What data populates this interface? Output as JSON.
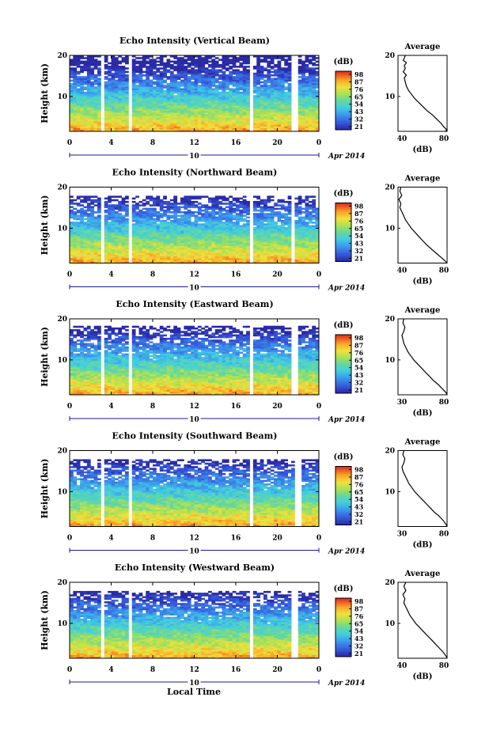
{
  "figure": {
    "date_label": "Apr 2014",
    "date_day": "10",
    "x_axis_label": "Local Time",
    "y_axis_label": "Height (km)",
    "colorbar_unit": "(dB)",
    "colorbar_ticks": [
      "98",
      "87",
      "76",
      "65",
      "54",
      "43",
      "32",
      "21"
    ],
    "average_title": "Average",
    "average_xlabel": "(dB)"
  },
  "chart_data": [
    {
      "type": "heatmap",
      "title": "Echo Intensity (Vertical Beam)",
      "x_ticks": [
        "0",
        "4",
        "8",
        "12",
        "16",
        "20",
        "0"
      ],
      "y_ticks": [
        "20",
        "10"
      ],
      "xlim": [
        0,
        24
      ],
      "ylim": [
        1.5,
        20
      ],
      "zlim": [
        21,
        98
      ],
      "data_gaps_hours": [
        [
          2.9,
          3.2
        ],
        [
          5.6,
          5.9
        ],
        [
          17.5,
          17.8
        ],
        [
          21.3,
          21.9
        ]
      ],
      "top_h_km": 20,
      "average_profile": {
        "xlim": [
          35,
          82
        ],
        "x_ticks": [
          "40",
          "80"
        ],
        "y_ticks": [
          "20",
          "10"
        ],
        "points": [
          [
            42,
            20
          ],
          [
            41,
            19.3
          ],
          [
            40,
            18.8
          ],
          [
            43,
            18.2
          ],
          [
            41,
            17.5
          ],
          [
            42,
            16.8
          ],
          [
            40,
            16
          ],
          [
            43,
            15.2
          ],
          [
            41,
            14.5
          ],
          [
            42,
            13.5
          ],
          [
            43,
            12.5
          ],
          [
            45,
            11.5
          ],
          [
            48,
            10.5
          ],
          [
            51,
            9.5
          ],
          [
            55,
            8.5
          ],
          [
            59,
            7.5
          ],
          [
            63,
            6.5
          ],
          [
            68,
            5.5
          ],
          [
            72,
            4.5
          ],
          [
            76,
            3.5
          ],
          [
            79,
            2.6
          ],
          [
            82,
            1.8
          ],
          [
            80,
            1.5
          ]
        ]
      }
    },
    {
      "type": "heatmap",
      "title": "Echo Intensity (Northward Beam)",
      "x_ticks": [
        "0",
        "4",
        "8",
        "12",
        "16",
        "20",
        "0"
      ],
      "y_ticks": [
        "20",
        "10"
      ],
      "xlim": [
        0,
        24
      ],
      "ylim": [
        1.5,
        20
      ],
      "zlim": [
        21,
        98
      ],
      "data_gaps_hours": [
        [
          2.9,
          3.2
        ],
        [
          5.6,
          5.9
        ],
        [
          17.5,
          17.8
        ],
        [
          21.3,
          21.7
        ]
      ],
      "top_h_km": 18,
      "average_profile": {
        "xlim": [
          30,
          82
        ],
        "x_ticks": [
          "40",
          "80"
        ],
        "y_ticks": [
          "20",
          "10"
        ],
        "points": [
          [
            33,
            20
          ],
          [
            32,
            19
          ],
          [
            34,
            18
          ],
          [
            31,
            17
          ],
          [
            33,
            16
          ],
          [
            32,
            15
          ],
          [
            34,
            14
          ],
          [
            36,
            13
          ],
          [
            38,
            12
          ],
          [
            41,
            11
          ],
          [
            44,
            10
          ],
          [
            48,
            9
          ],
          [
            52,
            8
          ],
          [
            56,
            7
          ],
          [
            60,
            6
          ],
          [
            65,
            5
          ],
          [
            70,
            4
          ],
          [
            75,
            3
          ],
          [
            80,
            2
          ],
          [
            82,
            1.5
          ]
        ]
      }
    },
    {
      "type": "heatmap",
      "title": "Echo Intensity (Eastward Beam)",
      "x_ticks": [
        "0",
        "4",
        "8",
        "12",
        "16",
        "20",
        "0"
      ],
      "y_ticks": [
        "20",
        "10"
      ],
      "xlim": [
        0,
        24
      ],
      "ylim": [
        1.5,
        20
      ],
      "zlim": [
        21,
        98
      ],
      "data_gaps_hours": [
        [
          2.9,
          3.2
        ],
        [
          5.6,
          5.9
        ],
        [
          17.5,
          17.8
        ],
        [
          21.3,
          21.9
        ]
      ],
      "top_h_km": 18.5,
      "average_profile": {
        "xlim": [
          30,
          80
        ],
        "x_ticks": [
          "30",
          "80"
        ],
        "y_ticks": [
          "20",
          "10"
        ],
        "points": [
          [
            36,
            20
          ],
          [
            35,
            19
          ],
          [
            37,
            18
          ],
          [
            36,
            17
          ],
          [
            34,
            16
          ],
          [
            35,
            15
          ],
          [
            36,
            14
          ],
          [
            38,
            13
          ],
          [
            40,
            12
          ],
          [
            43,
            11
          ],
          [
            46,
            10
          ],
          [
            50,
            9
          ],
          [
            54,
            8
          ],
          [
            58,
            7
          ],
          [
            62,
            6
          ],
          [
            66,
            5
          ],
          [
            71,
            4
          ],
          [
            75,
            3
          ],
          [
            79,
            2
          ],
          [
            80,
            1.5
          ]
        ]
      }
    },
    {
      "type": "heatmap",
      "title": "Echo Intensity (Southward Beam)",
      "x_ticks": [
        "0",
        "4",
        "8",
        "12",
        "16",
        "20",
        "0"
      ],
      "y_ticks": [
        "20",
        "10"
      ],
      "xlim": [
        0,
        24
      ],
      "ylim": [
        1.5,
        20
      ],
      "zlim": [
        21,
        98
      ],
      "data_gaps_hours": [
        [
          2.9,
          3.2
        ],
        [
          5.6,
          5.9
        ],
        [
          17.5,
          17.8
        ],
        [
          21.8,
          22.2
        ]
      ],
      "top_h_km": 18,
      "average_profile": {
        "xlim": [
          30,
          80
        ],
        "x_ticks": [
          "30",
          "80"
        ],
        "y_ticks": [
          "20",
          "10"
        ],
        "points": [
          [
            36,
            20
          ],
          [
            35,
            19
          ],
          [
            37,
            18
          ],
          [
            36,
            17
          ],
          [
            34,
            16
          ],
          [
            35,
            15
          ],
          [
            37,
            14
          ],
          [
            39,
            13
          ],
          [
            41,
            12
          ],
          [
            44,
            11
          ],
          [
            47,
            10
          ],
          [
            51,
            9
          ],
          [
            55,
            8
          ],
          [
            59,
            7
          ],
          [
            63,
            6
          ],
          [
            67,
            5
          ],
          [
            72,
            4
          ],
          [
            76,
            3
          ],
          [
            79,
            2
          ],
          [
            80,
            1.5
          ]
        ]
      }
    },
    {
      "type": "heatmap",
      "title": "Echo Intensity (Westward Beam)",
      "x_ticks": [
        "0",
        "4",
        "8",
        "12",
        "16",
        "20",
        "0"
      ],
      "y_ticks": [
        "20",
        "10"
      ],
      "xlim": [
        0,
        24
      ],
      "ylim": [
        1.5,
        20
      ],
      "zlim": [
        21,
        98
      ],
      "data_gaps_hours": [
        [
          2.9,
          3.2
        ],
        [
          5.6,
          5.9
        ],
        [
          17.5,
          17.8
        ],
        [
          21.3,
          21.9
        ]
      ],
      "top_h_km": 18,
      "average_profile": {
        "xlim": [
          30,
          80
        ],
        "x_ticks": [
          "40",
          "80"
        ],
        "y_ticks": [
          "20",
          "10"
        ],
        "points": [
          [
            38,
            20
          ],
          [
            36,
            19
          ],
          [
            38,
            18
          ],
          [
            35,
            17
          ],
          [
            37,
            16
          ],
          [
            36,
            15
          ],
          [
            38,
            14
          ],
          [
            40,
            13
          ],
          [
            42,
            12
          ],
          [
            45,
            11
          ],
          [
            48,
            10
          ],
          [
            52,
            9
          ],
          [
            56,
            8
          ],
          [
            60,
            7
          ],
          [
            64,
            6
          ],
          [
            68,
            5
          ],
          [
            72,
            4
          ],
          [
            76,
            3
          ],
          [
            79,
            2
          ],
          [
            80,
            1.5
          ]
        ]
      }
    }
  ]
}
